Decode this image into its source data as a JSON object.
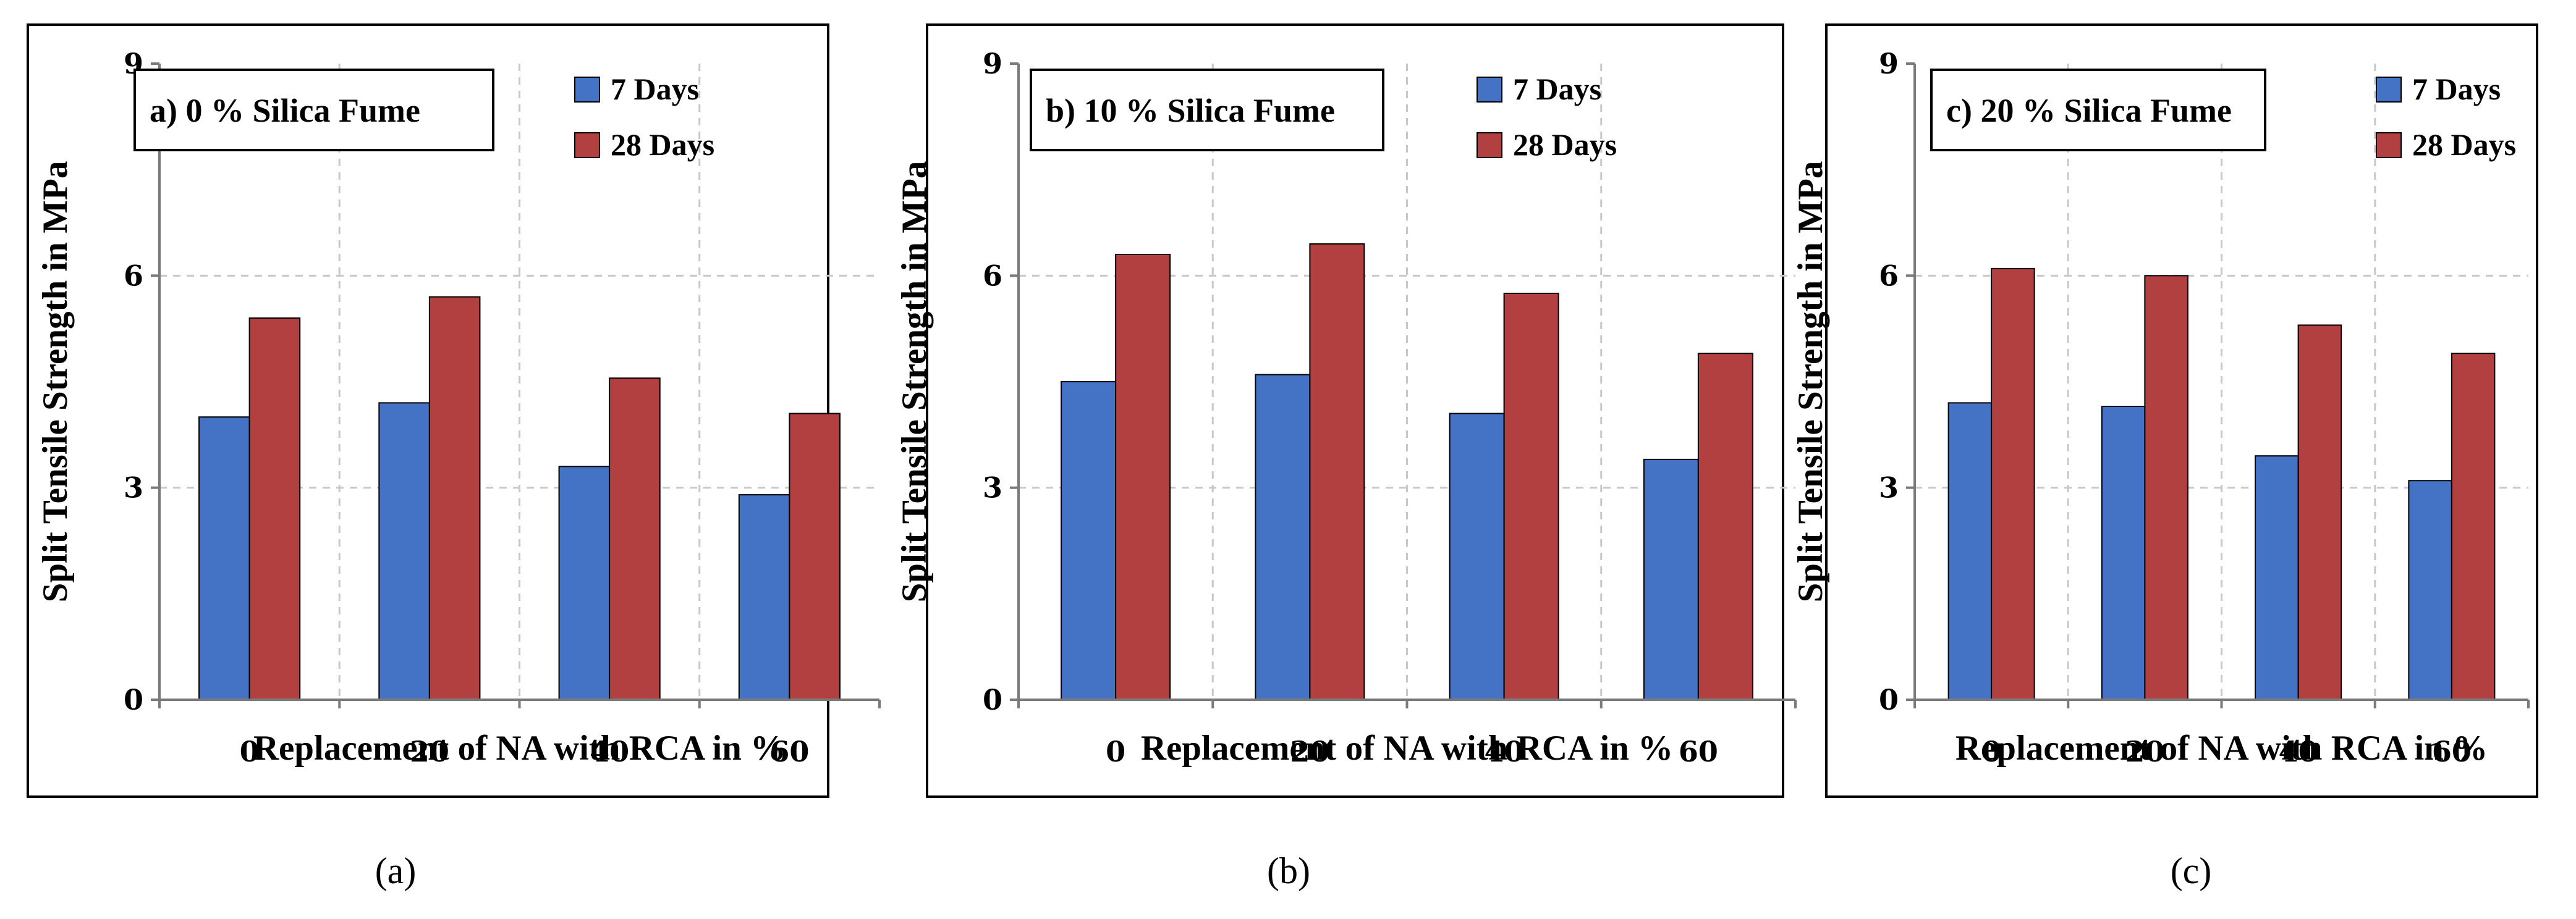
{
  "chart_data": [
    {
      "type": "bar",
      "title": "a) 0 % Silica Fume",
      "caption": "(a)",
      "xlabel": "Replacement of NA with RCA in %",
      "ylabel": "Split Tensile Strength in MPa",
      "categories": [
        "0",
        "20",
        "40",
        "60"
      ],
      "ylim": [
        0,
        9
      ],
      "yticks": [
        "0",
        "3",
        "6",
        "9"
      ],
      "grid": true,
      "legend_position": "top-right",
      "series": [
        {
          "name": "7 Days",
          "color": "#4472C4",
          "values": [
            4.0,
            4.2,
            3.3,
            2.9
          ]
        },
        {
          "name": "28 Days",
          "color": "#B34040",
          "values": [
            5.4,
            5.7,
            4.55,
            4.05
          ]
        }
      ]
    },
    {
      "type": "bar",
      "title": "b) 10 % Silica Fume",
      "caption": "(b)",
      "xlabel": "Replacement of NA with RCA in %",
      "ylabel": "Split Tensile Strength in MPa",
      "categories": [
        "0",
        "20",
        "40",
        "60"
      ],
      "ylim": [
        0,
        9
      ],
      "yticks": [
        "0",
        "3",
        "6",
        "9"
      ],
      "grid": true,
      "legend_position": "top-right",
      "series": [
        {
          "name": "7 Days",
          "color": "#4472C4",
          "values": [
            4.5,
            4.6,
            4.05,
            3.4
          ]
        },
        {
          "name": "28 Days",
          "color": "#B34040",
          "values": [
            6.3,
            6.45,
            5.75,
            4.9
          ]
        }
      ]
    },
    {
      "type": "bar",
      "title": "c) 20 % Silica Fume",
      "caption": "(c)",
      "xlabel": "Replacement of NA with RCA in %",
      "ylabel": "Split Tensile Strength in MPa",
      "categories": [
        "0",
        "20",
        "40",
        "60"
      ],
      "ylim": [
        0,
        9
      ],
      "yticks": [
        "0",
        "3",
        "6",
        "9"
      ],
      "grid": true,
      "legend_position": "top-right",
      "series": [
        {
          "name": "7 Days",
          "color": "#4472C4",
          "values": [
            4.2,
            4.15,
            3.45,
            3.1
          ]
        },
        {
          "name": "28 Days",
          "color": "#B34040",
          "values": [
            6.1,
            6.0,
            5.3,
            4.9
          ]
        }
      ]
    }
  ]
}
